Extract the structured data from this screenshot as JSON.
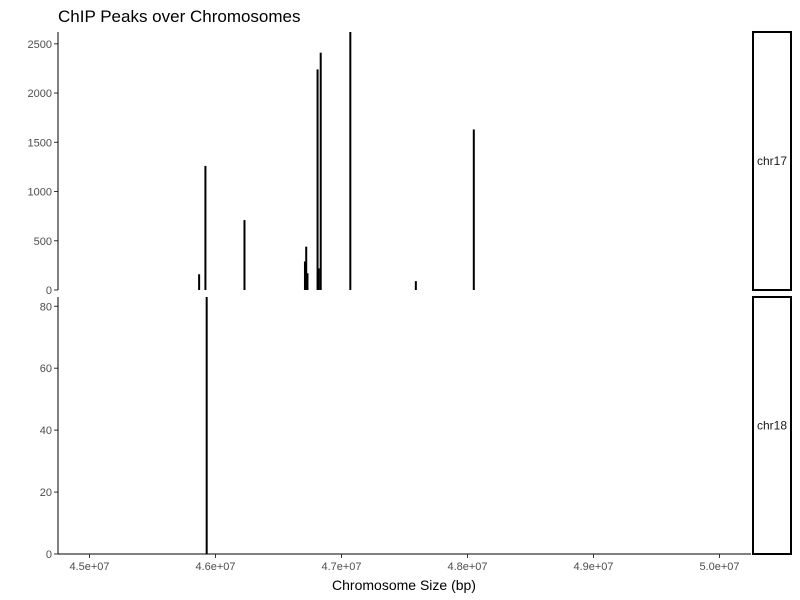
{
  "chart_data": {
    "type": "bar",
    "title": "ChIP Peaks over Chromosomes",
    "xlabel": "Chromosome Size (bp)",
    "ylabel": "",
    "xlim": [
      44750000,
      50250000
    ],
    "x_ticks": [
      {
        "value": 45000000,
        "label": "4.5e+07"
      },
      {
        "value": 46000000,
        "label": "4.6e+07"
      },
      {
        "value": 47000000,
        "label": "4.7e+07"
      },
      {
        "value": 48000000,
        "label": "4.8e+07"
      },
      {
        "value": 49000000,
        "label": "4.9e+07"
      },
      {
        "value": 50000000,
        "label": "5.0e+07"
      }
    ],
    "legend": "none",
    "grid": false,
    "panels": [
      {
        "strip_label": "chr17",
        "ylim": [
          0,
          2620
        ],
        "y_ticks": [
          {
            "value": 0,
            "label": "0"
          },
          {
            "value": 500,
            "label": "500"
          },
          {
            "value": 1000,
            "label": "1000"
          },
          {
            "value": 1500,
            "label": "1500"
          },
          {
            "value": 2000,
            "label": "2000"
          },
          {
            "value": 2500,
            "label": "2500"
          }
        ],
        "peaks": [
          {
            "x": 45870000,
            "y": 160
          },
          {
            "x": 45920000,
            "y": 1260
          },
          {
            "x": 46230000,
            "y": 710
          },
          {
            "x": 46710000,
            "y": 290
          },
          {
            "x": 46720000,
            "y": 440
          },
          {
            "x": 46730000,
            "y": 170
          },
          {
            "x": 46810000,
            "y": 2240
          },
          {
            "x": 46820000,
            "y": 220
          },
          {
            "x": 46835000,
            "y": 2410
          },
          {
            "x": 47070000,
            "y": 2620
          },
          {
            "x": 47590000,
            "y": 90
          },
          {
            "x": 48050000,
            "y": 1630
          }
        ]
      },
      {
        "strip_label": "chr18",
        "ylim": [
          0,
          83
        ],
        "y_ticks": [
          {
            "value": 0,
            "label": "0"
          },
          {
            "value": 20,
            "label": "20"
          },
          {
            "value": 40,
            "label": "40"
          },
          {
            "value": 60,
            "label": "60"
          },
          {
            "value": 80,
            "label": "80"
          }
        ],
        "peaks": [
          {
            "x": 45930000,
            "y": 83
          }
        ]
      }
    ]
  }
}
